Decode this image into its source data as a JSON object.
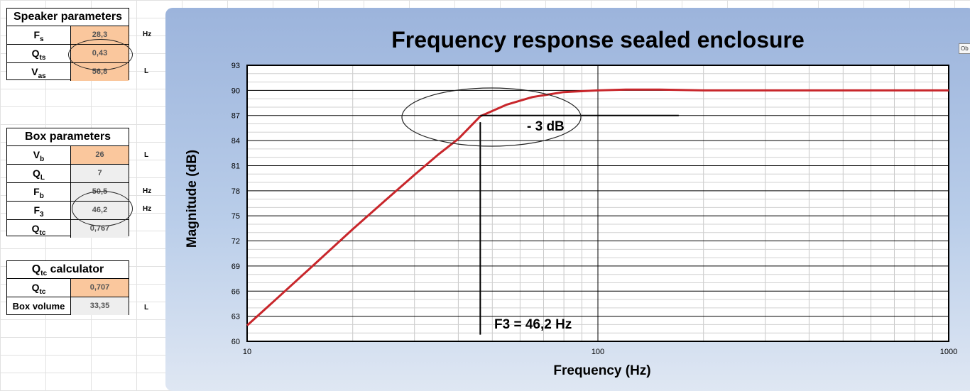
{
  "speaker": {
    "title": "Speaker parameters",
    "rows": [
      {
        "label": "F",
        "sub": "s",
        "value": "28,3",
        "unit": "Hz"
      },
      {
        "label": "Q",
        "sub": "ts",
        "value": "0,43",
        "unit": ""
      },
      {
        "label": "V",
        "sub": "as",
        "value": "56,8",
        "unit": "L"
      }
    ]
  },
  "box": {
    "title": "Box parameters",
    "rows": [
      {
        "label": "V",
        "sub": "b",
        "value": "26",
        "unit": "L"
      },
      {
        "label": "Q",
        "sub": "L",
        "value": "7",
        "unit": ""
      },
      {
        "label": "F",
        "sub": "b",
        "value": "50,5",
        "unit": "Hz"
      },
      {
        "label": "F",
        "sub": "3",
        "value": "46,2",
        "unit": "Hz"
      },
      {
        "label": "Q",
        "sub": "tc",
        "value": "0,767",
        "unit": ""
      }
    ]
  },
  "qtc": {
    "title_main": "Q",
    "title_sub": "tc",
    "title_rest": " calculator",
    "rows": [
      {
        "label": "Q",
        "sub": "tc",
        "value": "0,707",
        "unit": ""
      },
      {
        "label": "Box volume",
        "sub": "",
        "value": "33,35",
        "unit": "L"
      }
    ]
  },
  "tag_text": "Ob",
  "colors": {
    "curve": "#c8262b",
    "input_cell": "#fac79d",
    "computed_cell": "#eeeeee"
  },
  "chart_data": {
    "type": "line",
    "title": "Frequency response sealed enclosure",
    "xlabel": "Frequency (Hz)",
    "ylabel": "Magnitude (dB)",
    "x_scale": "log",
    "xlim": [
      10,
      1000
    ],
    "ylim": [
      60,
      93
    ],
    "x_ticks": [
      "10",
      "100",
      "1000"
    ],
    "y_ticks": [
      "60",
      "63",
      "66",
      "69",
      "72",
      "75",
      "78",
      "81",
      "84",
      "87",
      "90",
      "93"
    ],
    "grid": true,
    "x": [
      10,
      12,
      15,
      20,
      25,
      30,
      35,
      40,
      46.2,
      55,
      65,
      80,
      100,
      120,
      150,
      200,
      300,
      500,
      700,
      1000
    ],
    "y": [
      61.9,
      64.9,
      68.6,
      73.4,
      77.0,
      79.9,
      82.3,
      84.2,
      86.9,
      88.3,
      89.2,
      89.8,
      90.0,
      90.1,
      90.1,
      90.0,
      90.0,
      90.0,
      90.0,
      90.0
    ],
    "annotations": [
      {
        "text": "- 3 dB",
        "x": 80,
        "y": 85.7
      },
      {
        "text": "F3 = 46,2 Hz",
        "x": 46.2,
        "y": 62.1
      }
    ],
    "markers": {
      "f3_hz": 46.2,
      "level_db": 87
    }
  }
}
